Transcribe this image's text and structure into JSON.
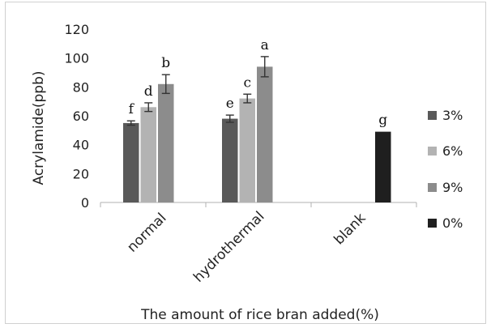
{
  "chart_data": {
    "type": "bar",
    "title": "",
    "xlabel": "The amount of rice bran added(%)",
    "ylabel": "Acrylamide(ppb)",
    "ylim": [
      0,
      120
    ],
    "yticks": [
      0,
      20,
      40,
      60,
      80,
      100,
      120
    ],
    "grid": false,
    "legend_position": "right",
    "categories": [
      "normal",
      "hydrothermal",
      "blank"
    ],
    "series": [
      {
        "name": "3%",
        "color": "#595959",
        "values": [
          55,
          58,
          null
        ],
        "errors": [
          1.5,
          2.5,
          null
        ],
        "labels": [
          "f",
          "e",
          null
        ]
      },
      {
        "name": "6%",
        "color": "#b3b3b3",
        "values": [
          66,
          72,
          null
        ],
        "errors": [
          3,
          3,
          null
        ],
        "labels": [
          "d",
          "c",
          null
        ]
      },
      {
        "name": "9%",
        "color": "#8c8c8c",
        "values": [
          82,
          94,
          null
        ],
        "errors": [
          6.5,
          7,
          null
        ],
        "labels": [
          "b",
          "a",
          null
        ]
      },
      {
        "name": "0%",
        "color": "#1f1f1f",
        "values": [
          null,
          null,
          49
        ],
        "errors": [
          null,
          null,
          null
        ],
        "labels": [
          null,
          null,
          "g"
        ]
      }
    ]
  }
}
